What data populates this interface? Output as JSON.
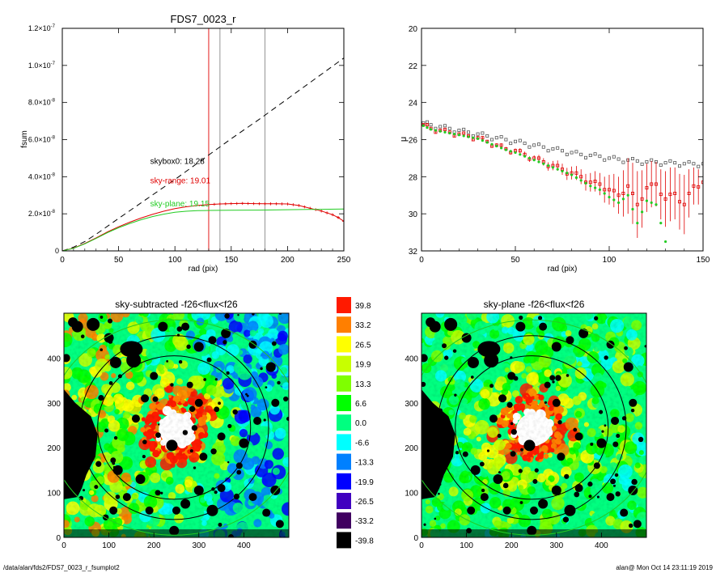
{
  "footer": {
    "path": "/data/alan/fds2/FDS7_0023_r_fsumplot2",
    "stamp": "alan@  Mon Oct 14 23:11:19 2019"
  },
  "colors": {
    "sky_range": "#e00000",
    "sky_plane": "#22cc22",
    "skybox": "#000000",
    "marker_line": "#e00000",
    "grey_line": "#888888"
  },
  "chart_data": [
    {
      "id": "growth",
      "type": "line",
      "title": "FDS7_0023_r",
      "xlabel": "rad (pix)",
      "ylabel": "fsum",
      "xlim": [
        0,
        250
      ],
      "ylim": [
        0,
        1.2e-07
      ],
      "xticks": [
        0,
        50,
        100,
        150,
        200,
        250
      ],
      "yticks": [
        0,
        2e-08,
        4e-08,
        6e-08,
        8e-08,
        1e-07,
        1.2e-07
      ],
      "ytick_labels": [
        {
          "mant": "0",
          "exp": ""
        },
        {
          "mant": "2.0×10",
          "exp": "-8"
        },
        {
          "mant": "4.0×10",
          "exp": "-8"
        },
        {
          "mant": "6.0×10",
          "exp": "-8"
        },
        {
          "mant": "8.0×10",
          "exp": "-8"
        },
        {
          "mant": "1.0×10",
          "exp": "-7"
        },
        {
          "mant": "1.2×10",
          "exp": "-7"
        }
      ],
      "vlines": [
        {
          "x": 130,
          "color": "#e00000"
        },
        {
          "x": 140,
          "color": "#888888"
        },
        {
          "x": 180,
          "color": "#888888"
        }
      ],
      "annotations": [
        {
          "label": "skybox0: 18.28",
          "color": "#000000",
          "x": 78,
          "y": 4.7e-08
        },
        {
          "label": "sky-range: 19.01",
          "color": "#e00000",
          "x": 78,
          "y": 3.65e-08
        },
        {
          "label": "sky-plane: 19.15",
          "color": "#22cc22",
          "x": 78,
          "y": 2.4e-08
        }
      ],
      "series": [
        {
          "style": "dashed",
          "color": "#000000",
          "x": [
            0,
            10,
            20,
            30,
            50,
            75,
            100,
            125,
            150,
            175,
            200,
            225,
            250
          ],
          "y": [
            0,
            2e-09,
            5e-09,
            9e-09,
            1.75e-08,
            2.8e-08,
            3.85e-08,
            4.95e-08,
            6.05e-08,
            7.1e-08,
            8.2e-08,
            9.3e-08,
            1.04e-07
          ]
        },
        {
          "style": "solid-markers",
          "color": "#e00000",
          "x": [
            0,
            10,
            20,
            30,
            40,
            50,
            60,
            70,
            80,
            90,
            100,
            110,
            120,
            130,
            140,
            150,
            160,
            170,
            180,
            190,
            200,
            210,
            220,
            230,
            240,
            245,
            250
          ],
          "y": [
            0,
            1.5e-09,
            4e-09,
            7e-09,
            1.02e-08,
            1.3e-08,
            1.55e-08,
            1.77e-08,
            1.97e-08,
            2.14e-08,
            2.28e-08,
            2.38e-08,
            2.45e-08,
            2.5e-08,
            2.53e-08,
            2.55e-08,
            2.56e-08,
            2.55e-08,
            2.54e-08,
            2.54e-08,
            2.53e-08,
            2.45e-08,
            2.3e-08,
            2.15e-08,
            1.95e-08,
            1.8e-08,
            1.6e-08
          ]
        },
        {
          "style": "solid",
          "color": "#22cc22",
          "x": [
            0,
            10,
            20,
            30,
            40,
            50,
            60,
            70,
            80,
            90,
            100,
            110,
            120,
            130,
            150,
            175,
            200,
            225,
            250
          ],
          "y": [
            0,
            1.4e-09,
            3.8e-09,
            6.7e-09,
            9.8e-09,
            1.25e-08,
            1.48e-08,
            1.68e-08,
            1.85e-08,
            1.98e-08,
            2.08e-08,
            2.14e-08,
            2.17e-08,
            2.18e-08,
            2.19e-08,
            2.2e-08,
            2.22e-08,
            2.24e-08,
            2.26e-08
          ]
        }
      ]
    },
    {
      "id": "profile",
      "type": "scatter",
      "title": "",
      "xlabel": "rad (pix)",
      "ylabel": "μ",
      "xlim": [
        0,
        150
      ],
      "ylim": [
        32,
        20
      ],
      "y_inverted": true,
      "xticks": [
        0,
        50,
        100,
        150
      ],
      "yticks": [
        20,
        22,
        24,
        26,
        28,
        30,
        32
      ],
      "series": [
        {
          "name": "skybox0",
          "color": "#555555",
          "marker": "open-square",
          "x": [
            1,
            5,
            10,
            15,
            20,
            25,
            30,
            35,
            40,
            45,
            50,
            55,
            60,
            65,
            70,
            75,
            80,
            85,
            90,
            95,
            100,
            105,
            110,
            115,
            120,
            125,
            130,
            135,
            140,
            145,
            150
          ],
          "y": [
            25.1,
            25.2,
            25.3,
            25.4,
            25.5,
            25.6,
            25.7,
            25.8,
            25.9,
            26.0,
            26.1,
            26.2,
            26.3,
            26.4,
            26.5,
            26.6,
            26.7,
            26.8,
            26.85,
            26.9,
            27.0,
            27.05,
            27.1,
            27.15,
            27.2,
            27.2,
            27.25,
            27.25,
            27.3,
            27.3,
            27.3
          ]
        },
        {
          "name": "sky-range",
          "color": "#e00000",
          "marker": "open-square-errorbar",
          "x": [
            1,
            5,
            10,
            15,
            20,
            25,
            30,
            35,
            40,
            45,
            50,
            55,
            60,
            65,
            70,
            75,
            80,
            85,
            90,
            95,
            100,
            105,
            110,
            115,
            120,
            125,
            130,
            135,
            140,
            145,
            150
          ],
          "y": [
            25.2,
            25.4,
            25.5,
            25.6,
            25.7,
            25.8,
            25.9,
            26.1,
            26.3,
            26.5,
            26.6,
            26.8,
            27.0,
            27.2,
            27.4,
            27.6,
            27.8,
            28.0,
            28.3,
            28.4,
            28.7,
            29.0,
            28.5,
            29.5,
            28.6,
            28.4,
            29.2,
            28.9,
            29.5,
            28.5,
            28.3
          ],
          "err": [
            0.05,
            0.05,
            0.05,
            0.05,
            0.05,
            0.05,
            0.08,
            0.08,
            0.1,
            0.1,
            0.12,
            0.15,
            0.15,
            0.2,
            0.25,
            0.3,
            0.35,
            0.4,
            0.5,
            0.6,
            0.8,
            1.0,
            1.5,
            1.8,
            1.3,
            1.2,
            1.5,
            1.4,
            1.6,
            1.0,
            0.9
          ]
        },
        {
          "name": "sky-plane",
          "color": "#22cc22",
          "marker": "dot",
          "x": [
            1,
            5,
            10,
            15,
            20,
            25,
            30,
            35,
            40,
            45,
            50,
            55,
            60,
            65,
            70,
            75,
            80,
            85,
            90,
            95,
            100,
            105,
            110,
            115,
            120,
            125,
            130
          ],
          "y": [
            25.25,
            25.45,
            25.55,
            25.65,
            25.75,
            25.85,
            25.95,
            26.15,
            26.35,
            26.55,
            26.7,
            26.9,
            27.1,
            27.3,
            27.5,
            27.7,
            27.9,
            28.2,
            28.5,
            28.7,
            29.1,
            29.4,
            29.0,
            30.5,
            29.3,
            29.5,
            31.5
          ]
        }
      ]
    },
    {
      "id": "sky-subtracted",
      "type": "heatmap",
      "title": "sky-subtracted -f26<flux<f26",
      "xlim": [
        0,
        500
      ],
      "ylim": [
        0,
        500
      ],
      "xticks": [
        0,
        100,
        200,
        300,
        400
      ],
      "yticks": [
        0,
        100,
        200,
        300,
        400
      ],
      "center": [
        245,
        245
      ],
      "ellipses": [
        {
          "rx": 280,
          "ry": 240,
          "color": "#22cc22"
        },
        {
          "rx": 210,
          "ry": 205,
          "color": "#000000"
        },
        {
          "rx": 170,
          "ry": 160,
          "color": "#000000"
        }
      ]
    },
    {
      "id": "sky-plane",
      "type": "heatmap",
      "title": "sky-plane -f26<flux<f26",
      "xlim": [
        0,
        500
      ],
      "ylim": [
        0,
        500
      ],
      "xticks": [
        0,
        100,
        200,
        300,
        400
      ],
      "yticks": [
        0,
        100,
        200,
        300,
        400
      ],
      "center": [
        245,
        245
      ],
      "ellipses": [
        {
          "rx": 280,
          "ry": 240,
          "color": "#22cc22"
        },
        {
          "rx": 210,
          "ry": 205,
          "color": "#000000"
        },
        {
          "rx": 170,
          "ry": 160,
          "color": "#000000"
        }
      ]
    },
    {
      "id": "colorbar",
      "type": "table",
      "levels": [
        {
          "label": "39.8",
          "color": "#ff1a00"
        },
        {
          "label": "33.2",
          "color": "#ff7f00"
        },
        {
          "label": "26.5",
          "color": "#ffff00"
        },
        {
          "label": "19.9",
          "color": "#c8ff00"
        },
        {
          "label": "13.3",
          "color": "#7fff00"
        },
        {
          "label": "6.6",
          "color": "#00ff00"
        },
        {
          "label": "0.0",
          "color": "#00ff80"
        },
        {
          "label": "-6.6",
          "color": "#00ffff"
        },
        {
          "label": "-13.3",
          "color": "#0080ff"
        },
        {
          "label": "-19.9",
          "color": "#0000ff"
        },
        {
          "label": "-26.5",
          "color": "#4000c0"
        },
        {
          "label": "-33.2",
          "color": "#400060"
        },
        {
          "label": "-39.8",
          "color": "#000000"
        }
      ]
    }
  ]
}
